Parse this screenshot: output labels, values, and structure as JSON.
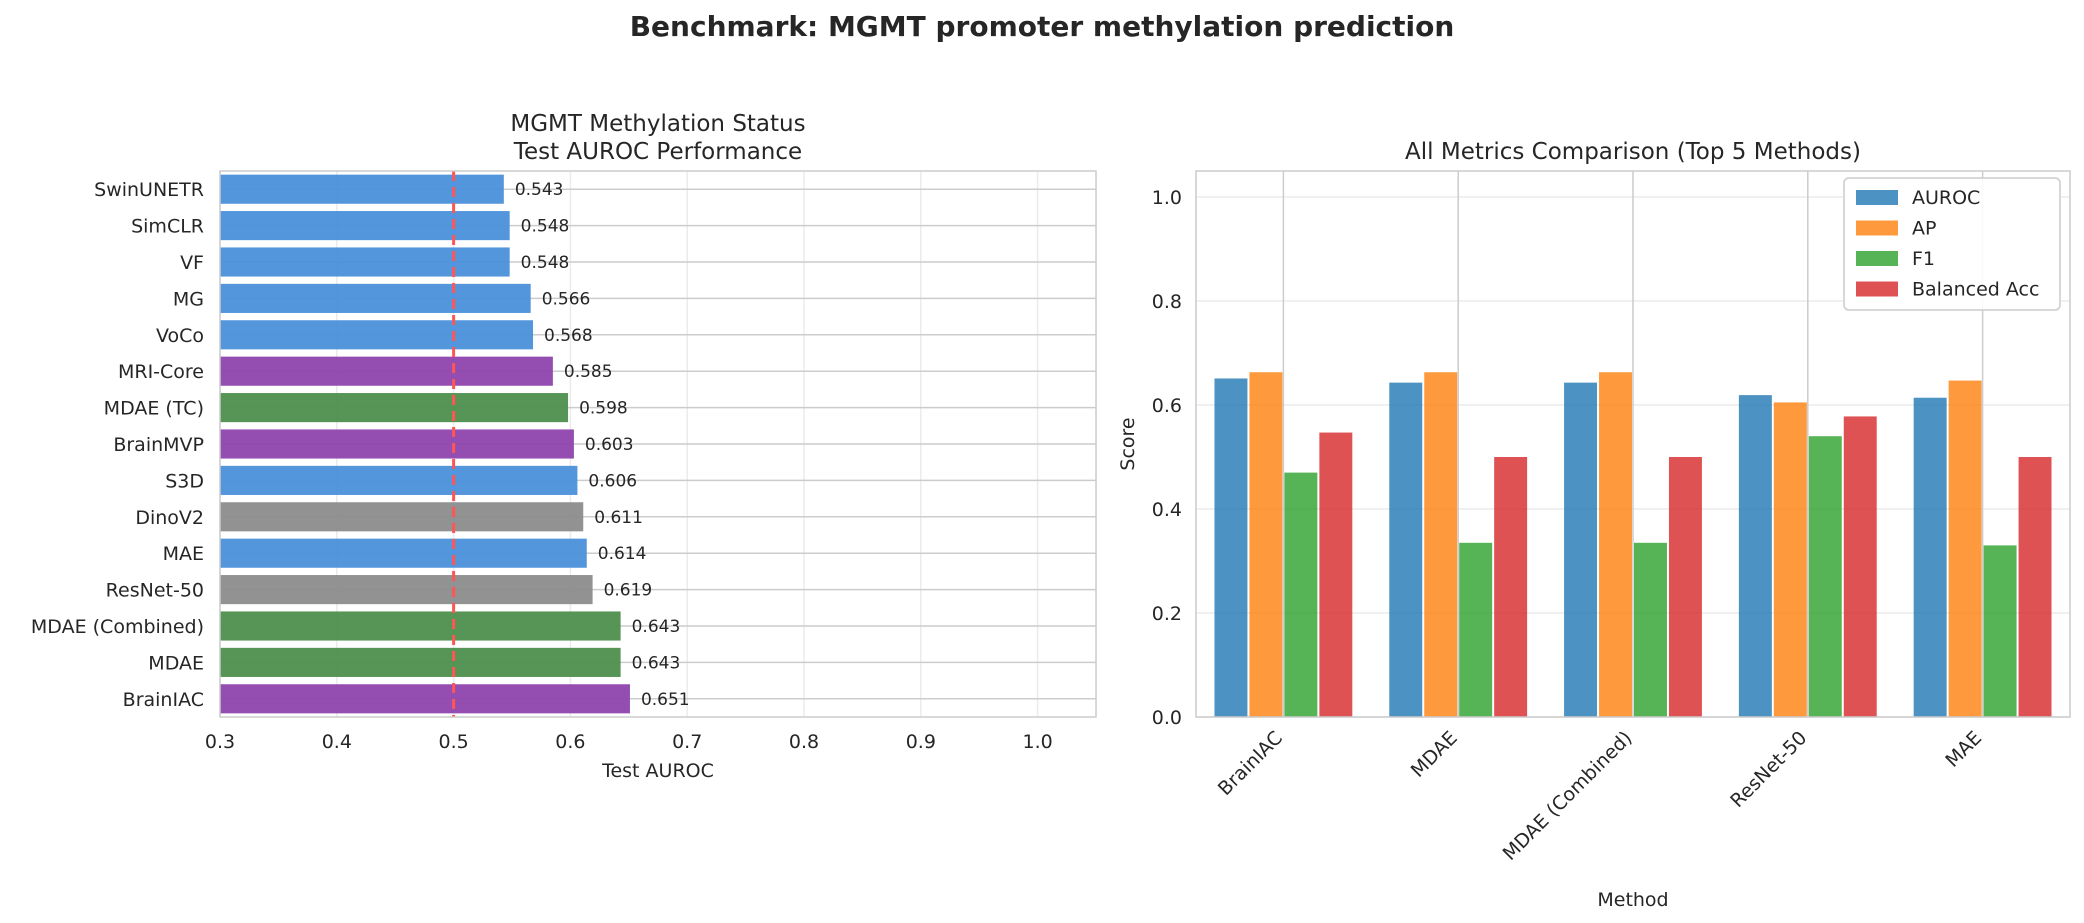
{
  "suptitle": "Benchmark: MGMT promoter methylation prediction",
  "colors": {
    "blue": "#4a90d9",
    "purple": "#8e44ad",
    "green": "#4d8f4d",
    "gray": "#8c8c8c",
    "reference_line": "#ff5555",
    "auroc": "#1f77b4",
    "ap": "#ff7f0e",
    "f1": "#2ca02c",
    "balanced_acc": "#d62728"
  },
  "chart_data": [
    {
      "type": "bar",
      "orientation": "horizontal",
      "title": "MGMT Methylation Status\nTest AUROC Performance",
      "xlabel": "Test AUROC",
      "ylabel": "",
      "xlim": [
        0.3,
        1.05
      ],
      "xticks": [
        "0.3",
        "0.4",
        "0.5",
        "0.6",
        "0.7",
        "0.8",
        "0.9",
        "1.0"
      ],
      "reference_line": {
        "x": 0.5,
        "style": "dashed",
        "color": "red"
      },
      "grid": true,
      "categories": [
        "BrainIAC",
        "MDAE",
        "MDAE (Combined)",
        "ResNet-50",
        "MAE",
        "DinoV2",
        "S3D",
        "BrainMVP",
        "MDAE (TC)",
        "MRI-Core",
        "VoCo",
        "MG",
        "VF",
        "SimCLR",
        "SwinUNETR"
      ],
      "values": [
        0.651,
        0.643,
        0.643,
        0.619,
        0.614,
        0.611,
        0.606,
        0.603,
        0.598,
        0.585,
        0.568,
        0.566,
        0.548,
        0.548,
        0.543
      ],
      "value_labels": [
        "0.651",
        "0.643",
        "0.643",
        "0.619",
        "0.614",
        "0.611",
        "0.606",
        "0.603",
        "0.598",
        "0.585",
        "0.568",
        "0.566",
        "0.548",
        "0.548",
        "0.543"
      ],
      "bar_colors": [
        "purple",
        "green",
        "green",
        "gray",
        "blue",
        "gray",
        "blue",
        "purple",
        "green",
        "purple",
        "blue",
        "blue",
        "blue",
        "blue",
        "blue"
      ]
    },
    {
      "type": "bar",
      "title": "All Metrics Comparison (Top 5 Methods)",
      "xlabel": "Method",
      "ylabel": "Score",
      "ylim": [
        0,
        1.05
      ],
      "yticks": [
        "0.0",
        "0.2",
        "0.4",
        "0.6",
        "0.8",
        "1.0"
      ],
      "grid": true,
      "legend_position": "top-right",
      "categories": [
        "BrainIAC",
        "MDAE",
        "MDAE (Combined)",
        "ResNet-50",
        "MAE"
      ],
      "series": [
        {
          "name": "AUROC",
          "color": "auroc",
          "values": [
            0.651,
            0.643,
            0.643,
            0.619,
            0.614
          ]
        },
        {
          "name": "AP",
          "color": "ap",
          "values": [
            0.663,
            0.663,
            0.663,
            0.605,
            0.647
          ]
        },
        {
          "name": "F1",
          "color": "f1",
          "values": [
            0.47,
            0.335,
            0.335,
            0.54,
            0.33
          ]
        },
        {
          "name": "Balanced Acc",
          "color": "balanced_acc",
          "values": [
            0.547,
            0.5,
            0.5,
            0.578,
            0.5
          ]
        }
      ]
    }
  ]
}
